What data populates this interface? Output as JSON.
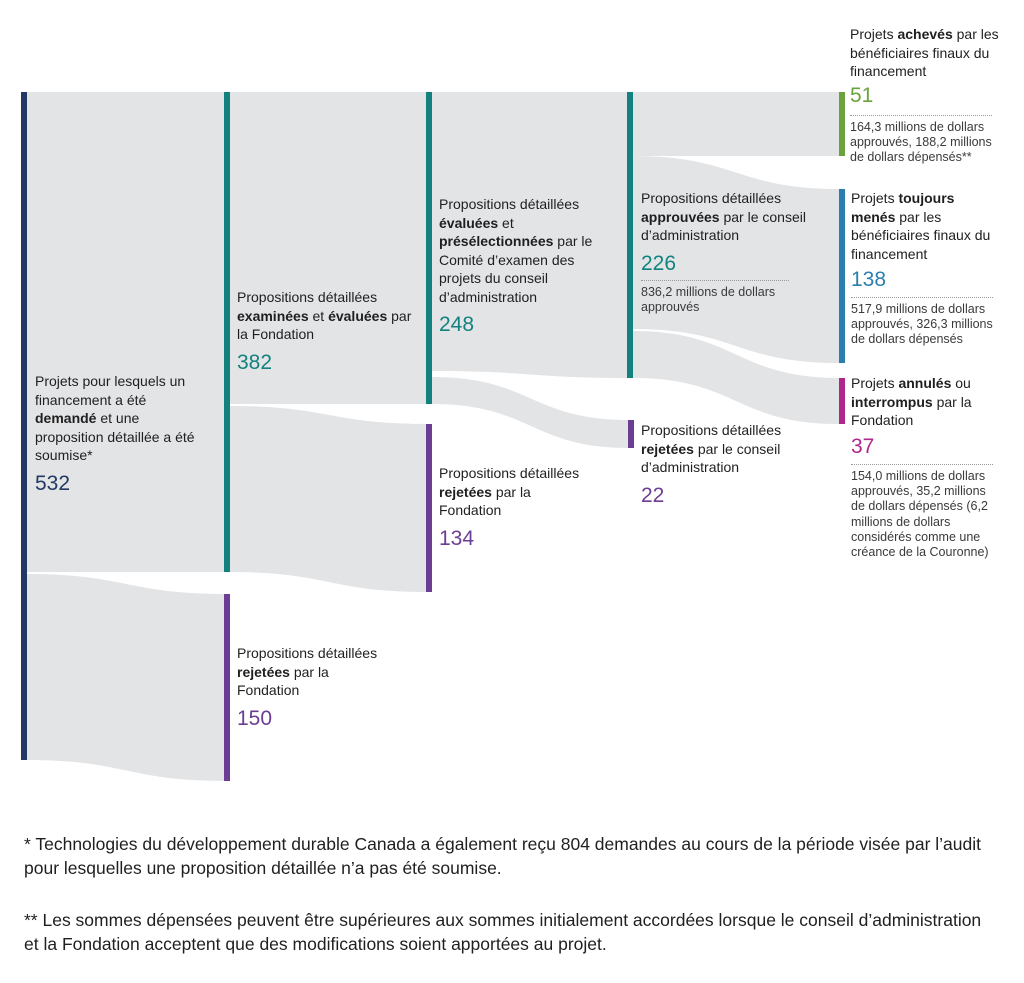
{
  "colors": {
    "flow": "#e3e4e6",
    "navy": "#213a63",
    "teal": "#13827e",
    "purple": "#6c3e93",
    "green": "#6aa33c",
    "blue": "#2a7fae",
    "magenta": "#b0268c"
  },
  "nodes": {
    "submitted": {
      "parts": [
        {
          "t": "Projets pour lesquels un financement a été ",
          "b": false
        },
        {
          "t": "demandé",
          "b": true
        },
        {
          "t": " et une proposition détaillée a été soumise*",
          "b": false
        }
      ],
      "count": "532"
    },
    "reviewed": {
      "parts": [
        {
          "t": "Propositions détaillées ",
          "b": false
        },
        {
          "t": "examinées",
          "b": true
        },
        {
          "t": " et ",
          "b": false
        },
        {
          "t": "évaluées",
          "b": true
        },
        {
          "t": " par la Fondation",
          "b": false
        }
      ],
      "count": "382"
    },
    "rejected1": {
      "parts": [
        {
          "t": "Propositions détaillées ",
          "b": false
        },
        {
          "t": "rejetées",
          "b": true
        },
        {
          "t": " par la Fondation",
          "b": false
        }
      ],
      "count": "150"
    },
    "shortlisted": {
      "parts": [
        {
          "t": "Propositions détaillées ",
          "b": false
        },
        {
          "t": "évaluées",
          "b": true
        },
        {
          "t": " et ",
          "b": false
        },
        {
          "t": "présélectionnées",
          "b": true
        },
        {
          "t": " par le Comité d’examen des projets du conseil d’administration",
          "b": false
        }
      ],
      "count": "248"
    },
    "rejected2": {
      "parts": [
        {
          "t": "Propositions détaillées ",
          "b": false
        },
        {
          "t": "rejetées",
          "b": true
        },
        {
          "t": " par la Fondation",
          "b": false
        }
      ],
      "count": "134"
    },
    "approved": {
      "parts": [
        {
          "t": "Propositions détaillées ",
          "b": false
        },
        {
          "t": "approuvées",
          "b": true
        },
        {
          "t": " par le conseil d’administration",
          "b": false
        }
      ],
      "count": "226",
      "details": "836,2 millions de dollars approuvés"
    },
    "rejected3": {
      "parts": [
        {
          "t": "Propositions détaillées ",
          "b": false
        },
        {
          "t": "rejetées",
          "b": true
        },
        {
          "t": " par le conseil d’administration",
          "b": false
        }
      ],
      "count": "22"
    },
    "completed": {
      "parts": [
        {
          "t": "Projets ",
          "b": false
        },
        {
          "t": "achevés",
          "b": true
        },
        {
          "t": " par les bénéficiaires finaux du financement",
          "b": false
        }
      ],
      "count": "51",
      "details": "164,3 millions de dollars approuvés, 188,2 millions de dollars dépensés**"
    },
    "ongoing": {
      "parts": [
        {
          "t": "Projets ",
          "b": false
        },
        {
          "t": "toujours menés",
          "b": true
        },
        {
          "t": " par les bénéficiaires finaux du financement",
          "b": false
        }
      ],
      "count": "138",
      "details": "517,9 millions de dollars approuvés, 326,3 millions de dollars dépensés"
    },
    "cancelled": {
      "parts": [
        {
          "t": "Projets ",
          "b": false
        },
        {
          "t": "annulés",
          "b": true
        },
        {
          "t": " ou ",
          "b": false
        },
        {
          "t": "interrompus",
          "b": true
        },
        {
          "t": " par la Fondation",
          "b": false
        }
      ],
      "count": "37",
      "details": "154,0 millions de dollars approuvés, 35,2 millions de dollars dépensés (6,2 millions de dollars considérés comme une créance de la Couronne)"
    }
  },
  "footnotes": {
    "note1": "* Technologies du développement durable Canada a également reçu 804 demandes au cours de la période visée par l’audit pour lesquelles une proposition détaillée n’a pas été soumise.",
    "note2": "** Les sommes dépensées peuvent être supérieures aux sommes initialement accordées lorsque le conseil d’administration et la Fondation acceptent que des modifications soient apportées au projet."
  }
}
